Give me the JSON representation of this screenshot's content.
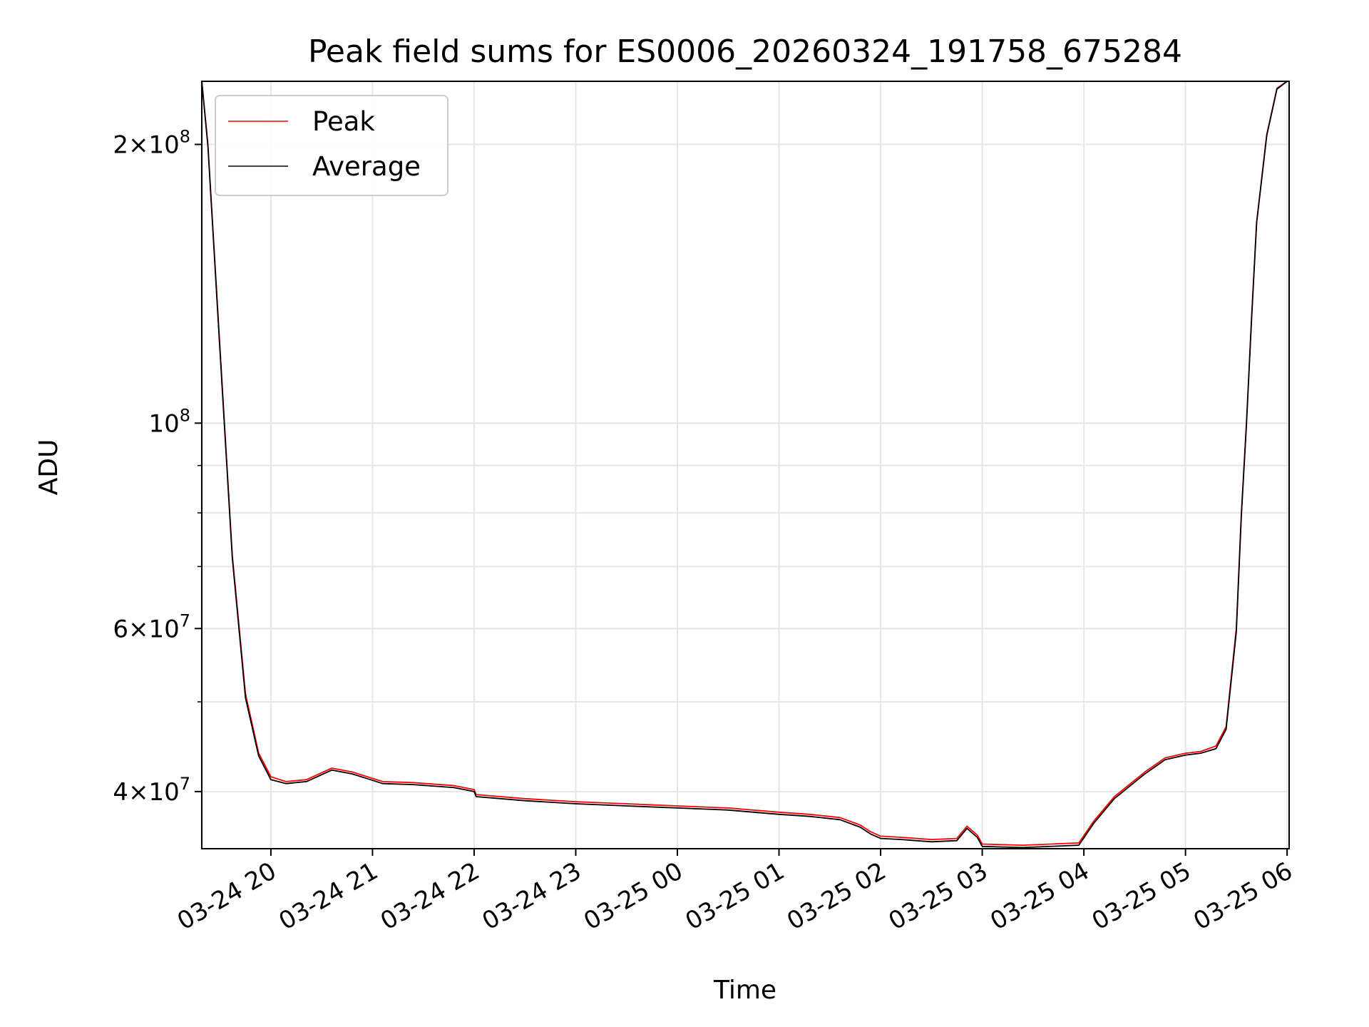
{
  "chart_data": {
    "type": "line",
    "title": "Peak field sums for ES0006_20260324_191758_675284",
    "xlabel": "Time",
    "ylabel": "ADU",
    "yscale": "log",
    "grid": true,
    "legend_position": "top-left",
    "x_unit": "hours since 03-24 19:00",
    "xlim": [
      0.32,
      11.02
    ],
    "ylim": [
      34700000,
      234000000
    ],
    "x_ticks": [
      {
        "value": 1,
        "label": "03-24 20"
      },
      {
        "value": 2,
        "label": "03-24 21"
      },
      {
        "value": 3,
        "label": "03-24 22"
      },
      {
        "value": 4,
        "label": "03-24 23"
      },
      {
        "value": 5,
        "label": "03-25 00"
      },
      {
        "value": 6,
        "label": "03-25 01"
      },
      {
        "value": 7,
        "label": "03-25 02"
      },
      {
        "value": 8,
        "label": "03-25 03"
      },
      {
        "value": 9,
        "label": "03-25 04"
      },
      {
        "value": 10,
        "label": "03-25 05"
      },
      {
        "value": 11,
        "label": "03-25 06"
      }
    ],
    "y_major_ticks": [
      {
        "value": 40000000,
        "mantissa": "4",
        "exponent": "7"
      },
      {
        "value": 60000000,
        "mantissa": "6",
        "exponent": "7"
      },
      {
        "value": 100000000,
        "mantissa": "",
        "exponent": "8"
      },
      {
        "value": 200000000,
        "mantissa": "2",
        "exponent": "8"
      }
    ],
    "y_minor_gridlines": [
      50000000,
      70000000,
      80000000,
      90000000
    ],
    "y_tick_base": "10",
    "series": [
      {
        "name": "Peak",
        "color": "#ff0000",
        "x": [
          0.32,
          0.38,
          0.5,
          0.62,
          0.75,
          0.88,
          1.0,
          1.15,
          1.35,
          1.6,
          1.8,
          1.95,
          2.1,
          2.4,
          2.8,
          3.0,
          3.02,
          3.5,
          4.0,
          4.5,
          5.0,
          5.5,
          6.0,
          6.3,
          6.6,
          6.8,
          6.9,
          7.0,
          7.2,
          7.5,
          7.75,
          7.85,
          7.95,
          8.0,
          8.4,
          8.95,
          9.1,
          9.3,
          9.6,
          9.8,
          10.0,
          10.15,
          10.3,
          10.4,
          10.5,
          10.55,
          10.6,
          10.65,
          10.7,
          10.8,
          10.9,
          11.0
        ],
        "y": [
          234000000,
          200000000,
          120000000,
          72000000,
          51000000,
          44000000,
          41500000,
          41000000,
          41200000,
          42400000,
          42000000,
          41500000,
          41000000,
          40900000,
          40600000,
          40200000,
          39700000,
          39300000,
          39000000,
          38800000,
          38600000,
          38400000,
          38000000,
          37800000,
          37500000,
          36800000,
          36200000,
          35800000,
          35700000,
          35500000,
          35600000,
          36700000,
          35900000,
          35100000,
          35000000,
          35200000,
          37200000,
          39500000,
          42000000,
          43500000,
          44000000,
          44200000,
          44800000,
          47000000,
          60000000,
          80000000,
          100000000,
          130000000,
          165000000,
          205000000,
          230000000,
          234000000
        ]
      },
      {
        "name": "Average",
        "color": "#000000",
        "x": [
          0.32,
          0.38,
          0.5,
          0.62,
          0.75,
          0.88,
          1.0,
          1.15,
          1.35,
          1.6,
          1.8,
          1.95,
          2.1,
          2.4,
          2.8,
          3.0,
          3.02,
          3.5,
          4.0,
          4.5,
          5.0,
          5.5,
          6.0,
          6.3,
          6.6,
          6.8,
          6.9,
          7.0,
          7.2,
          7.5,
          7.75,
          7.85,
          7.95,
          8.0,
          8.4,
          8.95,
          9.1,
          9.3,
          9.6,
          9.8,
          10.0,
          10.15,
          10.3,
          10.4,
          10.5,
          10.55,
          10.6,
          10.65,
          10.7,
          10.8,
          10.9,
          11.0
        ],
        "y": [
          234000000,
          199000000,
          119000000,
          71500000,
          50500000,
          43700000,
          41200000,
          40800000,
          41000000,
          42200000,
          41800000,
          41300000,
          40800000,
          40700000,
          40400000,
          40000000,
          39500000,
          39100000,
          38800000,
          38600000,
          38400000,
          38200000,
          37800000,
          37600000,
          37300000,
          36600000,
          36000000,
          35600000,
          35500000,
          35300000,
          35400000,
          36500000,
          35700000,
          34900000,
          34800000,
          35000000,
          37000000,
          39300000,
          41800000,
          43300000,
          43800000,
          44000000,
          44500000,
          46700000,
          59500000,
          79500000,
          99500000,
          129500000,
          164500000,
          204500000,
          229500000,
          234000000
        ]
      }
    ]
  }
}
